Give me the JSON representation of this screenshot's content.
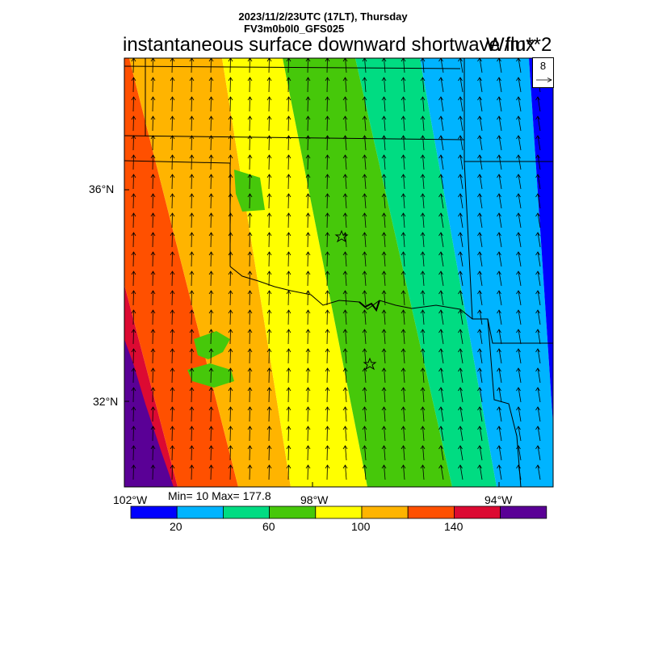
{
  "header": {
    "line1": "2023/11/2/23UTC (17LT), Thursday",
    "line2": "FV3m0b0l0_GFS025",
    "title": "instantaneous surface downward shortwave flux",
    "units": "W/m**2"
  },
  "map": {
    "lat_labels": [
      "36°N",
      "32°N"
    ],
    "lon_labels": [
      "102°W",
      "98°W",
      "94°W"
    ],
    "stats": "Min= 10 Max= 177.8",
    "reference_vector": "8",
    "star_markers": 2
  },
  "colorbar": {
    "colors": [
      "#0000ff",
      "#00b4ff",
      "#00dc82",
      "#46c80a",
      "#ffff00",
      "#ffb400",
      "#ff5000",
      "#dc0a32",
      "#5a0096"
    ],
    "ticks": [
      "20",
      "60",
      "100",
      "140"
    ]
  }
}
